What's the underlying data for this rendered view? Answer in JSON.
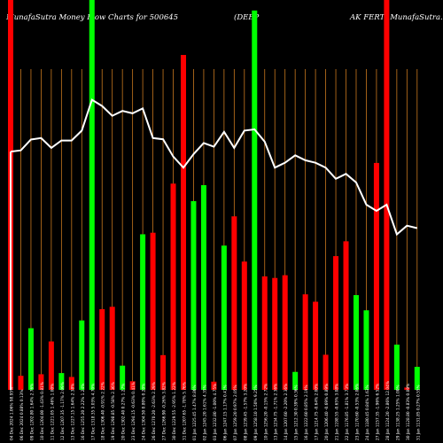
{
  "chart_data": {
    "type": "bar",
    "title_parts": [
      "MunafaSutra  Money Flow  Charts for 500645",
      "(DEEP",
      "AK FERT)  MunafaSutra.com"
    ],
    "colors": {
      "background": "#000000",
      "up": "#00ff00",
      "down": "#ff0000",
      "grid": "#c8781e",
      "line": "#ffffff"
    },
    "categories": [
      "04 Dec 2024 1.06% 98.95%",
      "06 Dec 2024 0.88% 0.13%",
      "09 Dec 1202.80 1.64% 2.76%",
      "10 Dec 1204.00 -1.43% 0.81%",
      "11 Dec 1221.05 1.46% 1.00%",
      "12 Dec 1207.35 -1.17% 2.09%",
      "13 Dec 1227.15 1.64% 2.38%",
      "16 Dec 1255.20 2.22% 1.24%",
      "17 Dec 1318.35 5.03% 4.70%",
      "18 Dec 1306.40 -0.91% 2.22%",
      "19 Dec 1298.85 -0.58% 2.36%",
      "20 Dec 1302.40 0.27% 1.27%",
      "23 Dec 1294.15 -0.63% 0.41%",
      "24 Dec 1304.50 0.80% 0.20%",
      "26 Dec 1270.20 -2.63% 2.29%",
      "27 Dec 1266.90 -0.26% 3.82%",
      "30 Dec 1229.55 -2.95% 1.22%",
      "31 Dec 1207.65 -1.78% 5.76%",
      "01 Jan 1225.45 1.47% 8.86%",
      "02 Jan 1245.20 1.61% 4.35%",
      "03 Jan 1232.80 -1.00% 4.75%",
      "06 Jan 1247.15 1.17% 0.41%",
      "07 Jan 1259.20 0.97% 2.05%",
      "08 Jan 1239.45 -1.57% 3.20%",
      "09 Jan 1258.10 1.50% 9.25%",
      "10 Jan 1256.20 -0.15% 2.72%",
      "13 Jan 1234.75 -1.71% 2.36%",
      "14 Jan 1207.60 -2.20% 2.36%",
      "15 Jan 1212.30 0.39% 0.36%",
      "16 Jan 1222.60 0.85% 2.19%",
      "17 Jan 1214.75 -0.64% 2.00%",
      "20 Jan 1206.40 -0.69% 0.89%",
      "21 Jan 1198.55 -0.65% 3.08%",
      "22 Jan 1176.85 -1.81% 3.73%",
      "23 Jan 1170.60 -0.53% 2.06%",
      "24 Jan 1180.45 0.84% 1.63%",
      "27 Jan 1157.35 -1.96% 6.52%",
      "28 Jan 1124.20 -2.86% 12.04%",
      "29 Jan 1138.25 1.25% 1.00%",
      "30 Jan 1128.80 -0.83% 0.09%",
      "31 Jan 1131.85 0.27% 0.55%"
    ],
    "colors_by_bar": [
      "red",
      "red",
      "green",
      "red",
      "red",
      "green",
      "red",
      "green",
      "green",
      "red",
      "red",
      "green",
      "red",
      "green",
      "red",
      "red",
      "red",
      "red",
      "green",
      "green",
      "red",
      "green",
      "red",
      "red",
      "green",
      "red",
      "red",
      "red",
      "green",
      "red",
      "red",
      "red",
      "red",
      "red",
      "green",
      "green",
      "red",
      "red",
      "green",
      "red",
      "green"
    ],
    "values": [
      100,
      3.6,
      15.8,
      4,
      12.4,
      4.3,
      3.3,
      17.8,
      100,
      20.7,
      21.3,
      6.2,
      2.2,
      39.9,
      40.3,
      8.9,
      52.9,
      85.9,
      48.4,
      52.5,
      2.1,
      37,
      44.5,
      32.9,
      97.3,
      29.1,
      28.7,
      29.4,
      4.6,
      24.5,
      22.6,
      9,
      34.3,
      38.1,
      24.3,
      20.4,
      58.2,
      100,
      11.6,
      0.6,
      5.9
    ],
    "line_values": [
      1193,
      1194,
      1202.8,
      1204,
      1196,
      1202,
      1202,
      1210,
      1235,
      1230,
      1222,
      1226,
      1224,
      1228,
      1204,
      1203,
      1189,
      1180,
      1191,
      1200,
      1197,
      1209,
      1196,
      1210,
      1211,
      1201,
      1180,
      1184,
      1190,
      1186,
      1184,
      1180,
      1171,
      1175,
      1168,
      1150,
      1145,
      1150,
      1126,
      1133,
      1131
    ],
    "ylim": [
      0,
      100
    ],
    "line_ylim": [
      1000,
      1262
    ]
  }
}
